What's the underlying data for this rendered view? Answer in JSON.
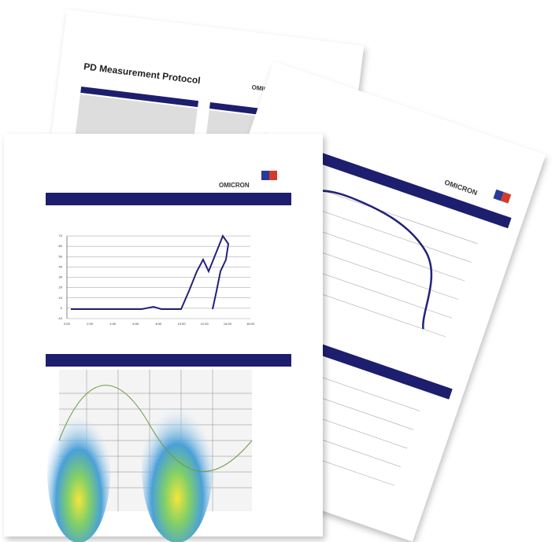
{
  "back_page": {
    "title": "PD Measurement Protocol",
    "logo": "OMICRON"
  },
  "right_page": {
    "logo": "OMICRON"
  },
  "front_page": {
    "logo": "OMICRON",
    "chart": {
      "yticks": [
        "70",
        "60",
        "50",
        "40",
        "30",
        "20",
        "10",
        "0",
        "-10"
      ],
      "xticks": [
        "0.00",
        "2.00",
        "4.00",
        "6.00",
        "8.00",
        "10.00",
        "12.00",
        "14.00",
        "16.00"
      ]
    }
  }
}
